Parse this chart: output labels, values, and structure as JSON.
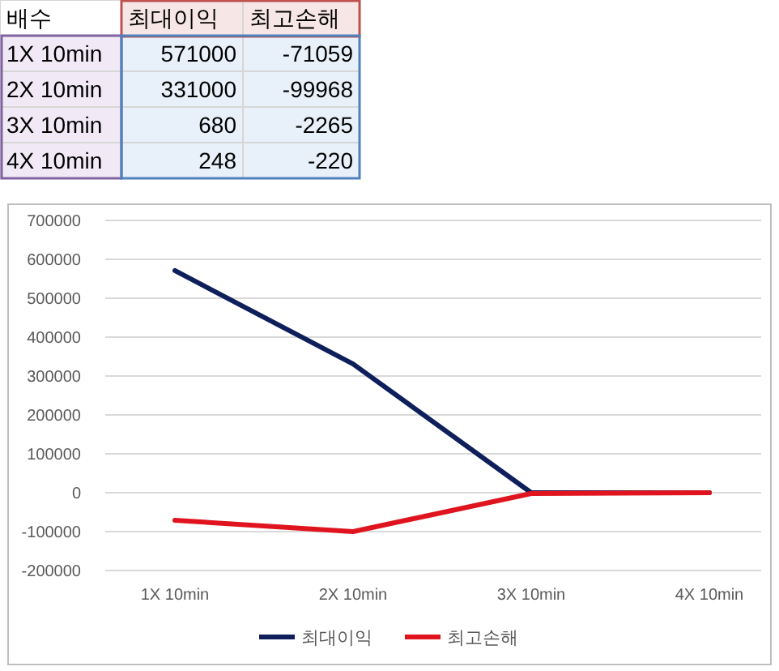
{
  "chart_data": [
    {
      "type": "other",
      "annotations": [
        "배수",
        "최대이익",
        "최고손해",
        "1X 10min",
        "571000",
        "-71059",
        "2X 10min",
        "331000",
        "-99968",
        "3X 10min",
        "680",
        "-2265",
        "4X 10min",
        "248",
        "-220"
      ]
    },
    {
      "type": "line",
      "categories": [
        "1X 10min",
        "2X 10min",
        "3X 10min",
        "4X 10min"
      ],
      "series": [
        {
          "name": "최대이익",
          "color": "#0e1f5b",
          "values": [
            571000,
            331000,
            0,
            0
          ]
        },
        {
          "name": "최고손해",
          "color": "#e0141e",
          "values": [
            -71000,
            -100000,
            -2000,
            0
          ]
        }
      ],
      "ylim": [
        -200000,
        700000
      ],
      "yticks": [
        -200000,
        -100000,
        0,
        100000,
        200000,
        300000,
        400000,
        500000,
        600000,
        700000
      ],
      "grid": "y",
      "legend": "bottom",
      "marker": "none",
      "line_style": "solid"
    }
  ]
}
